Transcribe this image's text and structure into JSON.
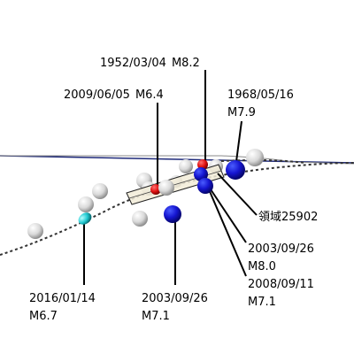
{
  "labels": {
    "eq_1952": {
      "date": "1952/03/04",
      "mag": "M8.2"
    },
    "eq_2009": {
      "date": "2009/06/05",
      "mag": "M6.4"
    },
    "eq_1968": {
      "date": "1968/05/16",
      "mag": "M7.9"
    },
    "region": {
      "text": "領域25902"
    },
    "eq_2003_b": {
      "date": "2003/09/26",
      "mag": "M8.0"
    },
    "eq_2008": {
      "date": "2008/09/11",
      "mag": "M7.1"
    },
    "eq_2016": {
      "date": "2016/01/14",
      "mag": "M6.7"
    },
    "eq_2003_a": {
      "date": "2003/09/26",
      "mag": "M7.1"
    }
  },
  "colors": {
    "coastline": "#1f2a7a",
    "trench": "#333333",
    "sphere_white": "#e8e8e8",
    "sphere_blue": "#1010cc",
    "sphere_red": "#e01010",
    "sphere_cyan": "#20c8d0",
    "fault_plane": "#f2ecd8",
    "leader": "#000000"
  }
}
